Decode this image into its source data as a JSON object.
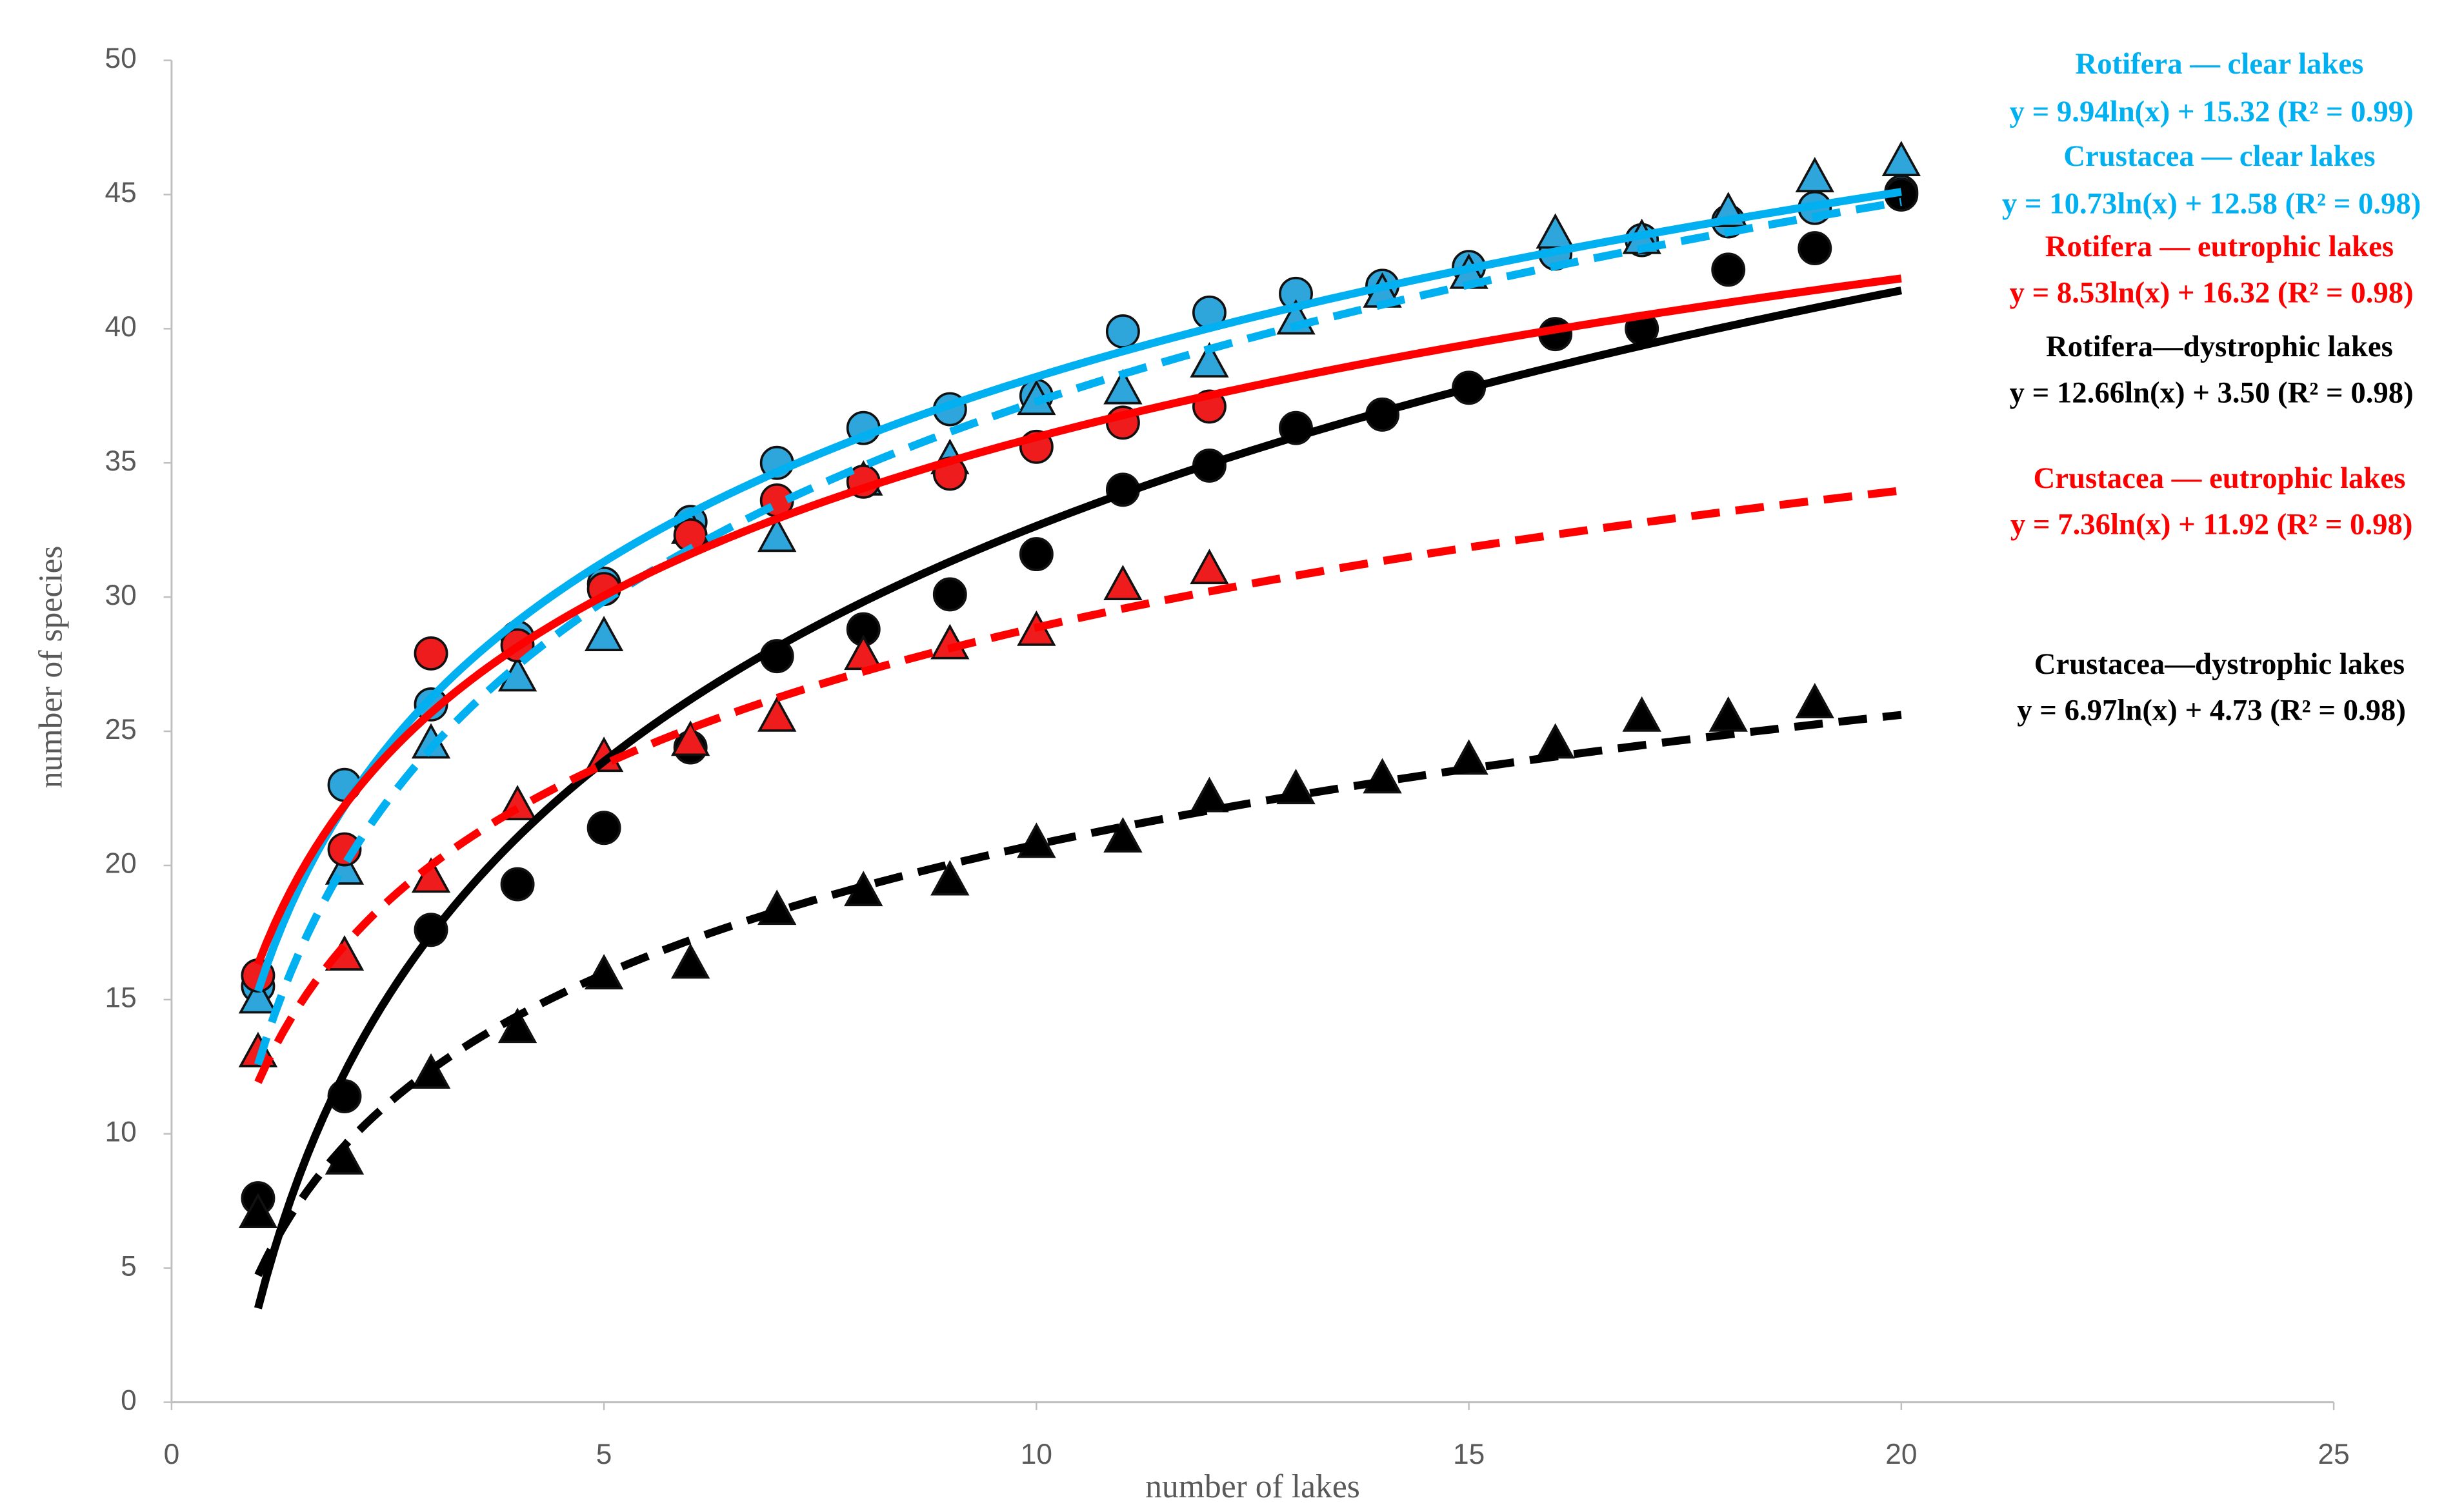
{
  "chart_data": {
    "type": "scatter",
    "xlabel": "number of lakes",
    "ylabel": "number of species",
    "xlim": [
      0,
      25
    ],
    "xticks": [
      0,
      5,
      10,
      15,
      20,
      25
    ],
    "ylim": [
      0,
      50
    ],
    "yticks": [
      0,
      5,
      10,
      15,
      20,
      25,
      30,
      35,
      40,
      45,
      50
    ],
    "grid": false,
    "x": [
      1,
      2,
      3,
      4,
      5,
      6,
      7,
      8,
      9,
      10,
      11,
      12,
      13,
      14,
      15,
      16,
      17,
      18,
      19,
      20
    ],
    "series": [
      {
        "name": "Rotifera — clear lakes",
        "color": "#00b0f0",
        "marker_color": "#2ea6dc",
        "marker": "circle",
        "dashed": false,
        "values": [
          15.5,
          23,
          26,
          28.5,
          30.5,
          32.8,
          35,
          36.3,
          37,
          37.5,
          39.9,
          40.6,
          41.3,
          41.6,
          42.3,
          42.8,
          43.3,
          44,
          44.5,
          45.1
        ],
        "trend": {
          "label": "y = 9.94ln(x) + 15.32 (R² = 0.99)",
          "a": 9.94,
          "b": 15.32
        }
      },
      {
        "name": "Crustacea — clear lakes",
        "color": "#00b0f0",
        "marker_color": "#2ea6dc",
        "marker": "triangle",
        "dashed": true,
        "values": [
          15,
          19.8,
          24.5,
          27,
          28.5,
          32.5,
          32.2,
          34.3,
          35.1,
          37.3,
          37.7,
          38.7,
          40.3,
          41.3,
          42,
          43.5,
          43.3,
          44.3,
          45.6,
          46.2
        ],
        "trend": {
          "label": "y = 10.73ln(x) + 12.58 (R² = 0.98)",
          "a": 10.73,
          "b": 12.58
        }
      },
      {
        "name": "Rotifera — eutrophic lakes",
        "color": "#ff0000",
        "marker_color": "#ee1c1c",
        "marker": "circle",
        "dashed": false,
        "values": [
          15.9,
          20.6,
          27.9,
          28.2,
          30.3,
          32.3,
          33.6,
          34.3,
          34.6,
          35.6,
          36.5,
          37.1,
          null,
          null,
          null,
          null,
          null,
          null,
          null,
          null
        ],
        "trend": {
          "label": "y = 8.53ln(x) + 16.32 (R² = 0.98)",
          "a": 8.53,
          "b": 16.32
        }
      },
      {
        "name": "Rotifera—dystrophic lakes",
        "color": "#000000",
        "marker_color": "#000000",
        "marker": "circle",
        "dashed": false,
        "values": [
          7.6,
          11.4,
          17.6,
          19.3,
          21.4,
          24.4,
          27.8,
          28.8,
          30.1,
          31.6,
          34,
          34.9,
          36.3,
          36.8,
          37.8,
          39.8,
          40,
          42.2,
          43,
          45
        ],
        "trend": {
          "label": "y = 12.66ln(x) + 3.50 (R² = 0.98)",
          "a": 12.66,
          "b": 3.5
        }
      },
      {
        "name": "Crustacea — eutrophic lakes",
        "color": "#ff0000",
        "marker_color": "#ee1c1c",
        "marker": "triangle",
        "dashed": true,
        "values": [
          13,
          16.6,
          19.5,
          22.2,
          24,
          24.6,
          25.5,
          27.8,
          28.2,
          28.7,
          30.4,
          31,
          null,
          null,
          null,
          null,
          null,
          null,
          null,
          null
        ],
        "trend": {
          "label": "y = 7.36ln(x) + 11.92 (R² = 0.98)",
          "a": 7.36,
          "b": 11.92
        }
      },
      {
        "name": "Crustacea—dystrophic lakes",
        "color": "#000000",
        "marker_color": "#000000",
        "marker": "triangle",
        "dashed": true,
        "values": [
          7,
          9,
          12.2,
          13.9,
          15.9,
          16.3,
          18.3,
          19,
          19.4,
          20.8,
          21,
          22.5,
          22.8,
          23.2,
          23.9,
          24.5,
          25.5,
          25.5,
          26,
          null
        ],
        "trend": {
          "label": "y = 6.97ln(x) + 4.73 (R² = 0.98)",
          "a": 6.97,
          "b": 4.73
        }
      }
    ]
  }
}
